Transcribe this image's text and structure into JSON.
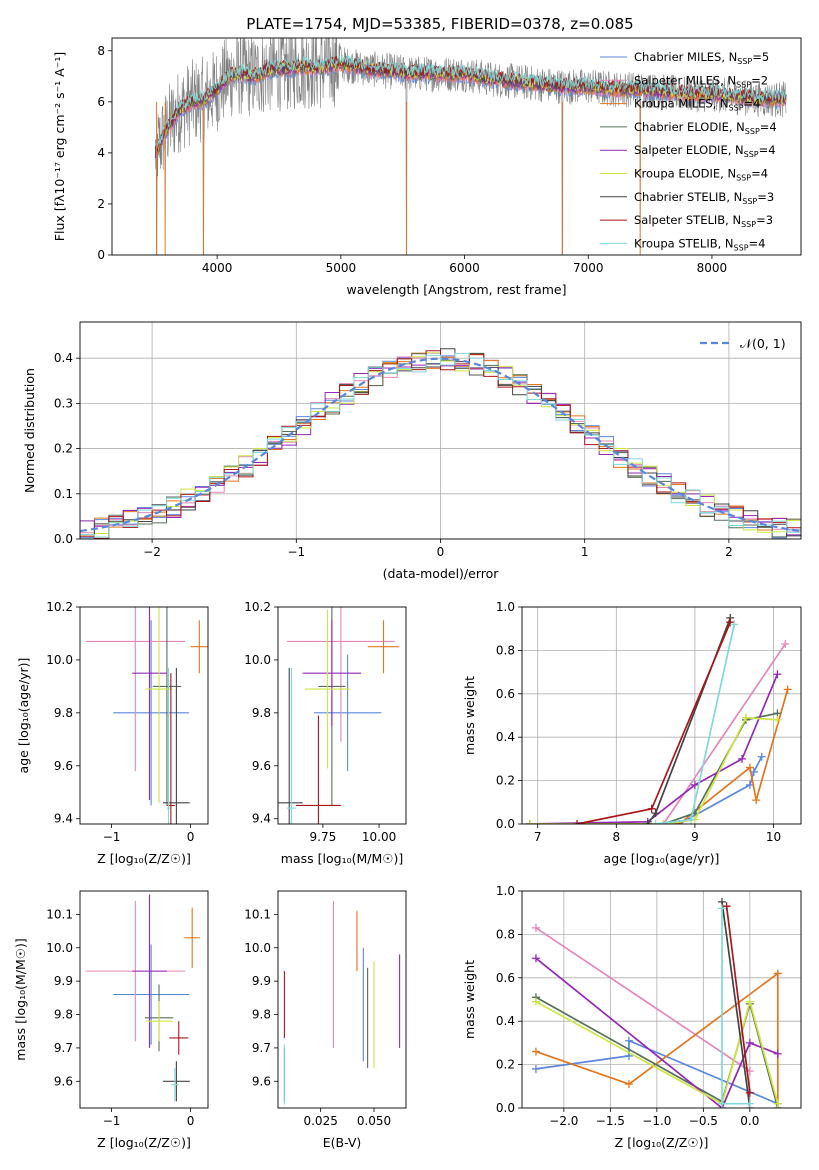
{
  "figure_title": "PLATE=1754, MJD=53385, FIBERID=0378, z=0.085",
  "colors": {
    "chabrier_miles": "#5b87db",
    "salpeter_miles": "#e487b8",
    "kroupa_miles": "#e2761f",
    "chabrier_elodie": "#56705a",
    "salpeter_elodie": "#9528b7",
    "kroupa_elodie": "#cde544",
    "chabrier_stelib": "#444444",
    "salpeter_stelib": "#a9161a",
    "kroupa_stelib": "#7fdad9",
    "data": "#808080",
    "gauss": "#5b87db"
  },
  "chart_data": [
    {
      "id": "spectrum",
      "type": "line",
      "title": "PLATE=1754, MJD=53385, FIBERID=0378, z=0.085",
      "xlabel": "wavelength [Angstrom, rest frame]",
      "ylabel": "Flux [fλ10⁻¹⁷ erg cm⁻² s⁻¹ A⁻¹]",
      "xlim": [
        3150,
        8720
      ],
      "ylim": [
        0,
        8.5
      ],
      "xticks": [
        4000,
        5000,
        6000,
        7000,
        8000
      ],
      "yticks": [
        0,
        2,
        4,
        6,
        8
      ],
      "grid": false,
      "legend_placement": "upper-right",
      "legend": [
        {
          "label": "Chabrier MILES, N",
          "sub": "SSP",
          "tail": "=5",
          "color_key": "chabrier_miles"
        },
        {
          "label": "Salpeter MILES, N",
          "sub": "SSP",
          "tail": "=2",
          "color_key": "salpeter_miles"
        },
        {
          "label": "Kroupa MILES, N",
          "sub": "SSP",
          "tail": "=4",
          "color_key": "kroupa_miles"
        },
        {
          "label": "Chabrier ELODIE, N",
          "sub": "SSP",
          "tail": "=4",
          "color_key": "chabrier_elodie"
        },
        {
          "label": "Salpeter ELODIE, N",
          "sub": "SSP",
          "tail": "=4",
          "color_key": "salpeter_elodie"
        },
        {
          "label": "Kroupa ELODIE, N",
          "sub": "SSP",
          "tail": "=4",
          "color_key": "kroupa_elodie"
        },
        {
          "label": "Chabrier STELIB, N",
          "sub": "SSP",
          "tail": "=3",
          "color_key": "chabrier_stelib"
        },
        {
          "label": "Salpeter STELIB, N",
          "sub": "SSP",
          "tail": "=3",
          "color_key": "salpeter_stelib"
        },
        {
          "label": "Kroupa STELIB, N",
          "sub": "SSP",
          "tail": "=4",
          "color_key": "kroupa_stelib"
        }
      ],
      "continuum": {
        "x": [
          3500,
          3600,
          3700,
          3800,
          3900,
          4000,
          4100,
          4200,
          4300,
          4400,
          4500,
          4600,
          4700,
          4800,
          4900,
          5000,
          5200,
          5400,
          5600,
          5800,
          6000,
          6200,
          6400,
          6600,
          6800,
          7000,
          7200,
          7400,
          7600,
          7800,
          8000,
          8200,
          8400
        ],
        "y": [
          4.0,
          5.0,
          5.7,
          6.0,
          6.1,
          6.5,
          7.0,
          7.1,
          7.0,
          7.2,
          7.3,
          7.3,
          7.4,
          7.3,
          7.4,
          7.5,
          7.3,
          7.2,
          7.1,
          7.1,
          7.1,
          6.9,
          6.8,
          6.7,
          6.6,
          6.6,
          6.5,
          6.5,
          6.4,
          6.3,
          6.3,
          6.2,
          6.1
        ]
      },
      "data_range": [
        3500,
        8600
      ],
      "dips": [
        {
          "x": 3510,
          "y": 0
        },
        {
          "x": 3580,
          "y": 0
        },
        {
          "x": 3890,
          "y": 0
        },
        {
          "x": 5530,
          "y": 0
        },
        {
          "x": 6790,
          "y": 0
        },
        {
          "x": 7420,
          "y": 0
        }
      ]
    },
    {
      "id": "residuals",
      "type": "line",
      "xlabel": "(data-model)/error",
      "ylabel": "Normed distribution",
      "xlim": [
        -2.5,
        2.5
      ],
      "ylim": [
        0,
        0.48
      ],
      "xticks": [
        -2,
        -1,
        0,
        1,
        2
      ],
      "yticks": [
        0.0,
        0.1,
        0.2,
        0.3,
        0.4
      ],
      "grid": true,
      "legend_placement": "upper-right",
      "legend": [
        {
          "label": "𝒩(0, 1)",
          "color_key": "gauss"
        }
      ],
      "histograms": "step histograms of 9 model residual distributions, bin width 0.1, following N(0,1)"
    },
    {
      "id": "age_vs_Z",
      "type": "scatter",
      "xlabel": "Z [log₁₀(Z/Z☉)]",
      "ylabel": "age  [log₁₀(age/yr)]",
      "xlim": [
        -1.4,
        0.22
      ],
      "ylim": [
        9.38,
        10.2
      ],
      "xticks": [
        -1,
        0
      ],
      "yticks": [
        9.4,
        9.6,
        9.8,
        10.0,
        10.2
      ],
      "grid": false,
      "points": [
        {
          "key": "chabrier_miles",
          "x": -0.5,
          "y": 9.8,
          "xerr": 0.48,
          "yerr": 0.35
        },
        {
          "key": "salpeter_miles",
          "x": -0.7,
          "y": 10.07,
          "xerr": 0.63,
          "yerr": 0.49
        },
        {
          "key": "kroupa_miles",
          "x": 0.11,
          "y": 10.05,
          "xerr": 0.11,
          "yerr": 0.1
        },
        {
          "key": "chabrier_elodie",
          "x": -0.3,
          "y": 9.9,
          "xerr": 0.18,
          "yerr": 0.45
        },
        {
          "key": "salpeter_elodie",
          "x": -0.52,
          "y": 9.95,
          "xerr": 0.22,
          "yerr": 0.48
        },
        {
          "key": "kroupa_elodie",
          "x": -0.4,
          "y": 9.89,
          "xerr": 0.17,
          "yerr": 0.43
        },
        {
          "key": "chabrier_stelib",
          "x": -0.18,
          "y": 9.46,
          "xerr": 0.17,
          "yerr": 0.51
        },
        {
          "key": "salpeter_stelib",
          "x": -0.25,
          "y": 9.45,
          "xerr": 0.05,
          "yerr": 0.5
        },
        {
          "key": "kroupa_stelib",
          "x": -0.28,
          "y": 9.44,
          "xerr": 0.02,
          "yerr": 0.53
        }
      ]
    },
    {
      "id": "age_vs_mass",
      "type": "scatter",
      "xlabel": "mass [log₁₀(M/M☉)]",
      "ylabel": "",
      "xlim": [
        9.55,
        10.12
      ],
      "ylim": [
        9.38,
        10.2
      ],
      "xticks": [
        9.75,
        10.0
      ],
      "yticks": [
        9.4,
        9.6,
        9.8,
        10.0,
        10.2
      ],
      "grid": false,
      "points": [
        {
          "key": "chabrier_miles",
          "x": 9.86,
          "y": 9.8,
          "xerr": 0.15,
          "yerr": 0.22
        },
        {
          "key": "salpeter_miles",
          "x": 9.83,
          "y": 10.07,
          "xerr": 0.24,
          "yerr": 0.38
        },
        {
          "key": "kroupa_miles",
          "x": 10.02,
          "y": 10.05,
          "xerr": 0.07,
          "yerr": 0.1
        },
        {
          "key": "chabrier_elodie",
          "x": 9.79,
          "y": 9.9,
          "xerr": 0.06,
          "yerr": 0.45
        },
        {
          "key": "salpeter_elodie",
          "x": 9.79,
          "y": 9.95,
          "xerr": 0.13,
          "yerr": 0.2
        },
        {
          "key": "kroupa_elodie",
          "x": 9.77,
          "y": 9.89,
          "xerr": 0.1,
          "yerr": 0.3
        },
        {
          "key": "chabrier_stelib",
          "x": 9.6,
          "y": 9.46,
          "xerr": 0.06,
          "yerr": 0.51
        },
        {
          "key": "salpeter_stelib",
          "x": 9.73,
          "y": 9.45,
          "xerr": 0.1,
          "yerr": 0.34
        },
        {
          "key": "kroupa_stelib",
          "x": 9.61,
          "y": 9.44,
          "xerr": 0.02,
          "yerr": 0.53
        }
      ]
    },
    {
      "id": "weight_vs_age",
      "type": "line",
      "xlabel": "age  [log₁₀(age/yr)]",
      "ylabel": "mass weight",
      "xlim": [
        6.8,
        10.35
      ],
      "ylim": [
        0,
        1.0
      ],
      "xticks": [
        7,
        8,
        9,
        10
      ],
      "yticks": [
        0.0,
        0.2,
        0.4,
        0.6,
        0.8,
        1.0
      ],
      "grid": true,
      "series": [
        {
          "key": "chabrier_miles",
          "x": [
            6.9,
            8.8,
            9.7,
            9.75,
            9.85
          ],
          "y": [
            0.0,
            0.0,
            0.18,
            0.24,
            0.31
          ]
        },
        {
          "key": "salpeter_miles",
          "x": [
            6.9,
            8.6,
            10.15
          ],
          "y": [
            0.0,
            0.0,
            0.83
          ]
        },
        {
          "key": "kroupa_miles",
          "x": [
            6.9,
            8.8,
            9.7,
            9.78,
            10.18
          ],
          "y": [
            0.0,
            0.0,
            0.26,
            0.11,
            0.62
          ]
        },
        {
          "key": "chabrier_elodie",
          "x": [
            6.9,
            8.6,
            9.0,
            9.65,
            10.05
          ],
          "y": [
            0.0,
            0.0,
            0.05,
            0.48,
            0.51
          ]
        },
        {
          "key": "salpeter_elodie",
          "x": [
            6.9,
            8.4,
            9.0,
            9.6,
            10.05
          ],
          "y": [
            0.0,
            0.01,
            0.18,
            0.3,
            0.69
          ]
        },
        {
          "key": "kroupa_elodie",
          "x": [
            6.9,
            8.6,
            9.0,
            9.65,
            10.05
          ],
          "y": [
            0.0,
            0.0,
            0.02,
            0.49,
            0.48
          ]
        },
        {
          "key": "chabrier_stelib",
          "x": [
            8.4,
            8.5,
            9.45
          ],
          "y": [
            0.0,
            0.05,
            0.95
          ]
        },
        {
          "key": "salpeter_stelib",
          "x": [
            7.5,
            8.45,
            9.45
          ],
          "y": [
            0.0,
            0.07,
            0.93
          ]
        },
        {
          "key": "kroupa_stelib",
          "x": [
            8.5,
            8.95,
            9.5
          ],
          "y": [
            0.0,
            0.02,
            0.92
          ]
        }
      ]
    },
    {
      "id": "mass_vs_Z",
      "type": "scatter",
      "xlabel": "Z [log₁₀(Z/Z☉)]",
      "ylabel": "mass [log₁₀(M/M☉)]",
      "xlim": [
        -1.4,
        0.22
      ],
      "ylim": [
        9.52,
        10.17
      ],
      "xticks": [
        -1,
        0
      ],
      "yticks": [
        9.6,
        9.7,
        9.8,
        9.9,
        10.0,
        10.1
      ],
      "grid": false,
      "points": [
        {
          "key": "chabrier_miles",
          "x": -0.5,
          "y": 9.86,
          "xerr": 0.48,
          "yerr": 0.15
        },
        {
          "key": "salpeter_miles",
          "x": -0.7,
          "y": 9.93,
          "xerr": 0.63,
          "yerr": 0.21
        },
        {
          "key": "kroupa_miles",
          "x": 0.02,
          "y": 10.03,
          "xerr": 0.1,
          "yerr": 0.09
        },
        {
          "key": "chabrier_elodie",
          "x": -0.4,
          "y": 9.79,
          "xerr": 0.18,
          "yerr": 0.1
        },
        {
          "key": "salpeter_elodie",
          "x": -0.52,
          "y": 9.93,
          "xerr": 0.22,
          "yerr": 0.23
        },
        {
          "key": "kroupa_elodie",
          "x": -0.4,
          "y": 9.78,
          "xerr": 0.17,
          "yerr": 0.06
        },
        {
          "key": "chabrier_stelib",
          "x": -0.18,
          "y": 9.6,
          "xerr": 0.17,
          "yerr": 0.06
        },
        {
          "key": "salpeter_stelib",
          "x": -0.15,
          "y": 9.73,
          "xerr": 0.12,
          "yerr": 0.05
        },
        {
          "key": "kroupa_stelib",
          "x": -0.2,
          "y": 9.59,
          "xerr": 0.05,
          "yerr": 0.05
        }
      ]
    },
    {
      "id": "mass_vs_EBV",
      "type": "scatter",
      "xlabel": "E(B-V)",
      "ylabel": "",
      "xlim": [
        0.005,
        0.065
      ],
      "ylim": [
        9.52,
        10.17
      ],
      "xticks": [
        0.025,
        0.05
      ],
      "xticklabels": [
        "0.025",
        "0.050"
      ],
      "yticks": [
        9.6,
        9.7,
        9.8,
        9.9,
        10.0,
        10.1
      ],
      "grid": false,
      "points": [
        {
          "key": "chabrier_miles",
          "x": 0.045,
          "y": 9.83,
          "xerr": 0.0,
          "yerr": 0.17
        },
        {
          "key": "salpeter_miles",
          "x": 0.031,
          "y": 9.92,
          "xerr": 0.0,
          "yerr": 0.22
        },
        {
          "key": "kroupa_miles",
          "x": 0.042,
          "y": 10.02,
          "xerr": 0.0,
          "yerr": 0.09
        },
        {
          "key": "chabrier_elodie",
          "x": 0.047,
          "y": 9.79,
          "xerr": 0.0,
          "yerr": 0.15
        },
        {
          "key": "salpeter_elodie",
          "x": 0.062,
          "y": 9.84,
          "xerr": 0.0,
          "yerr": 0.14
        },
        {
          "key": "kroupa_elodie",
          "x": 0.05,
          "y": 9.8,
          "xerr": 0.0,
          "yerr": 0.16
        },
        {
          "key": "chabrier_stelib",
          "x": 0.008,
          "y": 9.62,
          "xerr": 0.0,
          "yerr": 0.08
        },
        {
          "key": "salpeter_stelib",
          "x": 0.008,
          "y": 9.83,
          "xerr": 0.0,
          "yerr": 0.1
        },
        {
          "key": "kroupa_stelib",
          "x": 0.008,
          "y": 9.62,
          "xerr": 0.0,
          "yerr": 0.09
        }
      ]
    },
    {
      "id": "weight_vs_Z",
      "type": "line",
      "xlabel": "Z [log₁₀(Z/Z☉)]",
      "ylabel": "mass weight",
      "xlim": [
        -2.45,
        0.55
      ],
      "ylim": [
        0,
        1.0
      ],
      "xticks": [
        -2.0,
        -1.5,
        -1.0,
        -0.5,
        0.0
      ],
      "xticklabels": [
        "−2.0",
        "−1.5",
        "−1.0",
        "−0.5",
        "0.0"
      ],
      "yticks": [
        0.0,
        0.2,
        0.4,
        0.6,
        0.8,
        1.0
      ],
      "grid": true,
      "series": [
        {
          "key": "chabrier_miles",
          "x": [
            -2.3,
            -1.3,
            -1.3,
            0.3
          ],
          "y": [
            0.18,
            0.24,
            0.31,
            0.02
          ]
        },
        {
          "key": "salpeter_miles",
          "x": [
            -2.3,
            0.0
          ],
          "y": [
            0.83,
            0.17
          ]
        },
        {
          "key": "kroupa_miles",
          "x": [
            -2.3,
            -1.3,
            0.3,
            0.3
          ],
          "y": [
            0.26,
            0.11,
            0.62,
            0.0
          ]
        },
        {
          "key": "chabrier_elodie",
          "x": [
            -2.3,
            -0.3,
            0.0,
            0.3
          ],
          "y": [
            0.51,
            0.03,
            0.48,
            0.0
          ]
        },
        {
          "key": "salpeter_elodie",
          "x": [
            -2.3,
            -0.3,
            0.0,
            0.3
          ],
          "y": [
            0.69,
            0.0,
            0.3,
            0.25
          ]
        },
        {
          "key": "kroupa_elodie",
          "x": [
            -2.3,
            -0.3,
            0.0,
            0.3
          ],
          "y": [
            0.49,
            0.02,
            0.49,
            0.02
          ]
        },
        {
          "key": "chabrier_stelib",
          "x": [
            -0.3,
            0.0
          ],
          "y": [
            0.95,
            0.0
          ]
        },
        {
          "key": "salpeter_stelib",
          "x": [
            -0.25,
            0.0
          ],
          "y": [
            0.93,
            0.07
          ]
        },
        {
          "key": "kroupa_stelib",
          "x": [
            -0.3,
            -0.3,
            0.0
          ],
          "y": [
            0.92,
            0.02,
            0.02
          ]
        }
      ]
    }
  ]
}
